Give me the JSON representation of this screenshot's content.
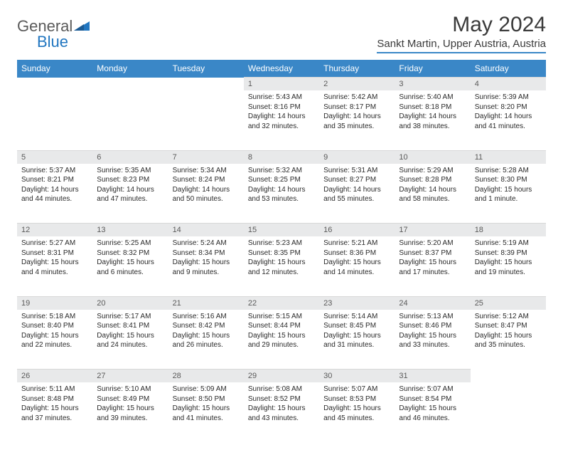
{
  "logo": {
    "part1": "General",
    "part2": "Blue"
  },
  "title": "May 2024",
  "location": "Sankt Martin, Upper Austria, Austria",
  "colors": {
    "header_bg": "#3a87c7",
    "header_text": "#ffffff",
    "daynum_bg": "#e8e9ea",
    "daynum_text": "#5a5a5a",
    "body_text": "#2a2a2a",
    "logo_gray": "#5a5a5a",
    "logo_blue": "#2176c0"
  },
  "weekdays": [
    "Sunday",
    "Monday",
    "Tuesday",
    "Wednesday",
    "Thursday",
    "Friday",
    "Saturday"
  ],
  "weeks": [
    [
      null,
      null,
      null,
      {
        "n": "1",
        "sr": "5:43 AM",
        "ss": "8:16 PM",
        "dl": "14 hours and 32 minutes."
      },
      {
        "n": "2",
        "sr": "5:42 AM",
        "ss": "8:17 PM",
        "dl": "14 hours and 35 minutes."
      },
      {
        "n": "3",
        "sr": "5:40 AM",
        "ss": "8:18 PM",
        "dl": "14 hours and 38 minutes."
      },
      {
        "n": "4",
        "sr": "5:39 AM",
        "ss": "8:20 PM",
        "dl": "14 hours and 41 minutes."
      }
    ],
    [
      {
        "n": "5",
        "sr": "5:37 AM",
        "ss": "8:21 PM",
        "dl": "14 hours and 44 minutes."
      },
      {
        "n": "6",
        "sr": "5:35 AM",
        "ss": "8:23 PM",
        "dl": "14 hours and 47 minutes."
      },
      {
        "n": "7",
        "sr": "5:34 AM",
        "ss": "8:24 PM",
        "dl": "14 hours and 50 minutes."
      },
      {
        "n": "8",
        "sr": "5:32 AM",
        "ss": "8:25 PM",
        "dl": "14 hours and 53 minutes."
      },
      {
        "n": "9",
        "sr": "5:31 AM",
        "ss": "8:27 PM",
        "dl": "14 hours and 55 minutes."
      },
      {
        "n": "10",
        "sr": "5:29 AM",
        "ss": "8:28 PM",
        "dl": "14 hours and 58 minutes."
      },
      {
        "n": "11",
        "sr": "5:28 AM",
        "ss": "8:30 PM",
        "dl": "15 hours and 1 minute."
      }
    ],
    [
      {
        "n": "12",
        "sr": "5:27 AM",
        "ss": "8:31 PM",
        "dl": "15 hours and 4 minutes."
      },
      {
        "n": "13",
        "sr": "5:25 AM",
        "ss": "8:32 PM",
        "dl": "15 hours and 6 minutes."
      },
      {
        "n": "14",
        "sr": "5:24 AM",
        "ss": "8:34 PM",
        "dl": "15 hours and 9 minutes."
      },
      {
        "n": "15",
        "sr": "5:23 AM",
        "ss": "8:35 PM",
        "dl": "15 hours and 12 minutes."
      },
      {
        "n": "16",
        "sr": "5:21 AM",
        "ss": "8:36 PM",
        "dl": "15 hours and 14 minutes."
      },
      {
        "n": "17",
        "sr": "5:20 AM",
        "ss": "8:37 PM",
        "dl": "15 hours and 17 minutes."
      },
      {
        "n": "18",
        "sr": "5:19 AM",
        "ss": "8:39 PM",
        "dl": "15 hours and 19 minutes."
      }
    ],
    [
      {
        "n": "19",
        "sr": "5:18 AM",
        "ss": "8:40 PM",
        "dl": "15 hours and 22 minutes."
      },
      {
        "n": "20",
        "sr": "5:17 AM",
        "ss": "8:41 PM",
        "dl": "15 hours and 24 minutes."
      },
      {
        "n": "21",
        "sr": "5:16 AM",
        "ss": "8:42 PM",
        "dl": "15 hours and 26 minutes."
      },
      {
        "n": "22",
        "sr": "5:15 AM",
        "ss": "8:44 PM",
        "dl": "15 hours and 29 minutes."
      },
      {
        "n": "23",
        "sr": "5:14 AM",
        "ss": "8:45 PM",
        "dl": "15 hours and 31 minutes."
      },
      {
        "n": "24",
        "sr": "5:13 AM",
        "ss": "8:46 PM",
        "dl": "15 hours and 33 minutes."
      },
      {
        "n": "25",
        "sr": "5:12 AM",
        "ss": "8:47 PM",
        "dl": "15 hours and 35 minutes."
      }
    ],
    [
      {
        "n": "26",
        "sr": "5:11 AM",
        "ss": "8:48 PM",
        "dl": "15 hours and 37 minutes."
      },
      {
        "n": "27",
        "sr": "5:10 AM",
        "ss": "8:49 PM",
        "dl": "15 hours and 39 minutes."
      },
      {
        "n": "28",
        "sr": "5:09 AM",
        "ss": "8:50 PM",
        "dl": "15 hours and 41 minutes."
      },
      {
        "n": "29",
        "sr": "5:08 AM",
        "ss": "8:52 PM",
        "dl": "15 hours and 43 minutes."
      },
      {
        "n": "30",
        "sr": "5:07 AM",
        "ss": "8:53 PM",
        "dl": "15 hours and 45 minutes."
      },
      {
        "n": "31",
        "sr": "5:07 AM",
        "ss": "8:54 PM",
        "dl": "15 hours and 46 minutes."
      },
      null
    ]
  ],
  "labels": {
    "sunrise": "Sunrise:",
    "sunset": "Sunset:",
    "daylight": "Daylight:"
  }
}
